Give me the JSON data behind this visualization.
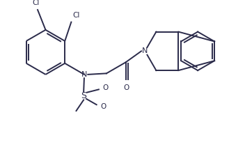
{
  "bg_color": "#ffffff",
  "line_color": "#2a2a4a",
  "line_width": 1.4,
  "figsize": [
    3.52,
    2.11
  ],
  "dpi": 100,
  "xlim": [
    -2.1,
    2.5
  ],
  "ylim": [
    -1.35,
    1.25
  ]
}
